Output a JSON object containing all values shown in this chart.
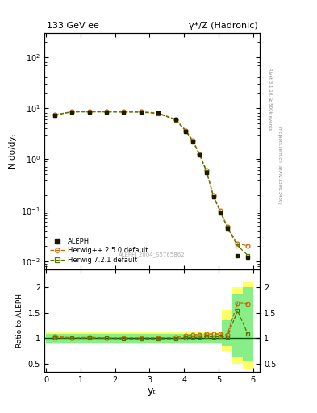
{
  "title_left": "133 GeV ee",
  "title_right": "γ*/Z (Hadronic)",
  "ylabel_main": "N dσ/dyₜ",
  "ylabel_ratio": "Ratio to ALEPH",
  "xlabel": "yₜ",
  "right_label_top": "Rivet 3.1.10, ≥ 500k events",
  "right_label_bottom": "mcplots.cern.ch [arXiv:1306.3436]",
  "watermark": "ALEPH_2004_S5765862",
  "ylim_main": [
    0.007,
    300
  ],
  "ylim_ratio": [
    0.35,
    2.35
  ],
  "xlim": [
    -0.05,
    6.2
  ],
  "aleph_x": [
    0.25,
    0.75,
    1.25,
    1.75,
    2.25,
    2.75,
    3.25,
    3.75,
    4.05,
    4.25,
    4.45,
    4.65,
    4.85,
    5.05,
    5.25,
    5.55,
    5.85
  ],
  "aleph_y": [
    7.2,
    8.5,
    8.5,
    8.5,
    8.5,
    8.5,
    8.0,
    6.0,
    3.5,
    2.2,
    1.2,
    0.55,
    0.18,
    0.09,
    0.045,
    0.013,
    0.012
  ],
  "aleph_yerr": [
    0.3,
    0.3,
    0.3,
    0.3,
    0.3,
    0.3,
    0.3,
    0.25,
    0.15,
    0.1,
    0.06,
    0.025,
    0.01,
    0.005,
    0.003,
    0.001,
    0.001
  ],
  "hw250_x": [
    0.25,
    0.75,
    1.25,
    1.75,
    2.25,
    2.75,
    3.25,
    3.75,
    4.05,
    4.25,
    4.45,
    4.65,
    4.85,
    5.05,
    5.25,
    5.55,
    5.85
  ],
  "hw250_y": [
    7.5,
    8.6,
    8.7,
    8.6,
    8.6,
    8.6,
    8.1,
    6.1,
    3.7,
    2.35,
    1.28,
    0.6,
    0.195,
    0.098,
    0.048,
    0.022,
    0.02
  ],
  "hw721_x": [
    0.25,
    0.75,
    1.25,
    1.75,
    2.25,
    2.75,
    3.25,
    3.75,
    4.05,
    4.25,
    4.45,
    4.65,
    4.85,
    5.05,
    5.25,
    5.55,
    5.85
  ],
  "hw721_y": [
    7.3,
    8.5,
    8.5,
    8.5,
    8.4,
    8.4,
    7.9,
    5.95,
    3.55,
    2.25,
    1.22,
    0.57,
    0.185,
    0.093,
    0.046,
    0.02,
    0.013
  ],
  "hw250_color": "#cc6600",
  "hw721_color": "#557700",
  "aleph_color": "#1a1a00",
  "ratio_hw250_y": [
    1.04,
    1.01,
    1.02,
    1.01,
    1.01,
    1.01,
    1.01,
    1.017,
    1.06,
    1.07,
    1.07,
    1.09,
    1.083,
    1.089,
    1.067,
    1.69,
    1.67
  ],
  "ratio_hw721_y": [
    1.01,
    1.0,
    1.0,
    1.0,
    0.988,
    0.988,
    0.988,
    0.992,
    1.014,
    1.023,
    1.017,
    1.036,
    1.028,
    1.033,
    1.022,
    1.538,
    1.08
  ],
  "green_band_y1": [
    0.92,
    0.92,
    0.92,
    0.92,
    0.92,
    0.92,
    0.92,
    0.92,
    0.92,
    0.92,
    0.92,
    0.92,
    0.92,
    0.92,
    0.85,
    0.65,
    0.55
  ],
  "green_band_y2": [
    1.08,
    1.08,
    1.08,
    1.08,
    1.08,
    1.08,
    1.08,
    1.08,
    1.08,
    1.08,
    1.08,
    1.08,
    1.08,
    1.08,
    1.35,
    1.85,
    2.0
  ],
  "yellow_band_y1": [
    0.88,
    0.88,
    0.88,
    0.88,
    0.88,
    0.88,
    0.88,
    0.88,
    0.88,
    0.88,
    0.88,
    0.88,
    0.88,
    0.88,
    0.75,
    0.5,
    0.4
  ],
  "yellow_band_y2": [
    1.12,
    1.12,
    1.12,
    1.12,
    1.12,
    1.12,
    1.12,
    1.12,
    1.12,
    1.12,
    1.12,
    1.12,
    1.12,
    1.12,
    1.55,
    2.0,
    2.1
  ],
  "band_x_edges": [
    0.0,
    0.5,
    1.0,
    1.5,
    2.0,
    2.5,
    3.0,
    3.5,
    3.9,
    4.1,
    4.3,
    4.5,
    4.7,
    4.9,
    5.1,
    5.4,
    5.7,
    6.0
  ]
}
